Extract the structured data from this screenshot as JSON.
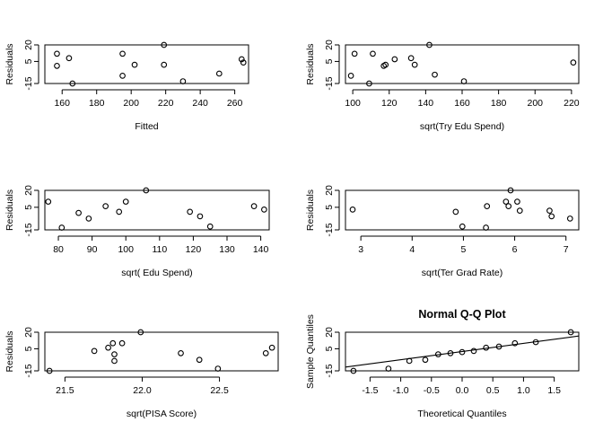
{
  "figure": {
    "background": "#ffffff",
    "point_color": "#000000"
  },
  "chart_data": [
    {
      "type": "scatter",
      "title": "",
      "xlabel": "Fitted",
      "ylabel": "Residuals",
      "xlim": [
        150,
        268
      ],
      "ylim": [
        -15,
        20
      ],
      "xticks": [
        160,
        180,
        200,
        220,
        240,
        260
      ],
      "yticks": [
        -15,
        5,
        20
      ],
      "grid": false,
      "points": [
        {
          "x": 157,
          "y": 12
        },
        {
          "x": 157,
          "y": 1
        },
        {
          "x": 164,
          "y": 8
        },
        {
          "x": 166,
          "y": -15
        },
        {
          "x": 195,
          "y": 12
        },
        {
          "x": 195,
          "y": -8
        },
        {
          "x": 202,
          "y": 2
        },
        {
          "x": 219,
          "y": 20
        },
        {
          "x": 219,
          "y": 2
        },
        {
          "x": 230,
          "y": -13
        },
        {
          "x": 251,
          "y": -6
        },
        {
          "x": 264,
          "y": 7
        },
        {
          "x": 265,
          "y": 4
        }
      ]
    },
    {
      "type": "scatter",
      "title": "",
      "xlabel": "sqrt(Try Edu Spend)",
      "ylabel": "Residuals",
      "xlim": [
        96,
        224
      ],
      "ylim": [
        -15,
        20
      ],
      "xticks": [
        100,
        120,
        140,
        160,
        180,
        200,
        220
      ],
      "yticks": [
        -15,
        5,
        20
      ],
      "grid": false,
      "points": [
        {
          "x": 99,
          "y": -8
        },
        {
          "x": 101,
          "y": 12
        },
        {
          "x": 109,
          "y": -15
        },
        {
          "x": 111,
          "y": 12
        },
        {
          "x": 117,
          "y": 1
        },
        {
          "x": 118,
          "y": 2
        },
        {
          "x": 123,
          "y": 7
        },
        {
          "x": 132,
          "y": 8
        },
        {
          "x": 134,
          "y": 2
        },
        {
          "x": 142,
          "y": 20
        },
        {
          "x": 145,
          "y": -7
        },
        {
          "x": 161,
          "y": -13
        },
        {
          "x": 221,
          "y": 4
        }
      ]
    },
    {
      "type": "scatter",
      "title": "",
      "xlabel": "sqrt( Edu Spend)",
      "ylabel": "Residuals",
      "xlim": [
        76,
        142.5
      ],
      "ylim": [
        -15,
        20
      ],
      "xticks": [
        80,
        90,
        100,
        110,
        120,
        130,
        140
      ],
      "yticks": [
        -15,
        5,
        20
      ],
      "grid": false,
      "points": [
        {
          "x": 77,
          "y": 10
        },
        {
          "x": 81,
          "y": -13
        },
        {
          "x": 86,
          "y": 0
        },
        {
          "x": 89,
          "y": -5
        },
        {
          "x": 94,
          "y": 6
        },
        {
          "x": 98,
          "y": 1
        },
        {
          "x": 100,
          "y": 10
        },
        {
          "x": 106,
          "y": 20
        },
        {
          "x": 119,
          "y": 1
        },
        {
          "x": 122,
          "y": -3
        },
        {
          "x": 125,
          "y": -12
        },
        {
          "x": 138,
          "y": 6
        },
        {
          "x": 141,
          "y": 3
        }
      ]
    },
    {
      "type": "scatter",
      "title": "",
      "xlabel": "sqrt(Ter Grad Rate)",
      "ylabel": "Residuals",
      "xlim": [
        2.7,
        7.25
      ],
      "ylim": [
        -15,
        20
      ],
      "xticks": [
        3,
        4,
        5,
        6,
        7
      ],
      "yticks": [
        -15,
        5,
        20
      ],
      "grid": false,
      "points": [
        {
          "x": 2.84,
          "y": 3
        },
        {
          "x": 4.85,
          "y": 1
        },
        {
          "x": 4.98,
          "y": -12
        },
        {
          "x": 5.44,
          "y": -13
        },
        {
          "x": 5.46,
          "y": 6
        },
        {
          "x": 5.83,
          "y": 10
        },
        {
          "x": 5.88,
          "y": 6
        },
        {
          "x": 5.92,
          "y": 20
        },
        {
          "x": 6.05,
          "y": 10
        },
        {
          "x": 6.1,
          "y": 2
        },
        {
          "x": 6.68,
          "y": 2
        },
        {
          "x": 6.72,
          "y": -3
        },
        {
          "x": 7.08,
          "y": -5
        }
      ]
    },
    {
      "type": "scatter",
      "title": "",
      "xlabel": "sqrt(PISA Score)",
      "ylabel": "Residuals",
      "xlim": [
        21.37,
        22.88
      ],
      "ylim": [
        -15,
        20
      ],
      "xticks": [
        21.5,
        22.0,
        22.5
      ],
      "xtick_labels": [
        "21.5",
        "22.0",
        "22.5"
      ],
      "yticks": [
        -15,
        5,
        20
      ],
      "grid": false,
      "points": [
        {
          "x": 21.4,
          "y": -15
        },
        {
          "x": 21.69,
          "y": 3
        },
        {
          "x": 21.78,
          "y": 6
        },
        {
          "x": 21.81,
          "y": 10
        },
        {
          "x": 21.82,
          "y": 0
        },
        {
          "x": 21.82,
          "y": -6
        },
        {
          "x": 21.87,
          "y": 10
        },
        {
          "x": 21.99,
          "y": 20
        },
        {
          "x": 22.25,
          "y": 1
        },
        {
          "x": 22.37,
          "y": -5
        },
        {
          "x": 22.49,
          "y": -13
        },
        {
          "x": 22.8,
          "y": 1
        },
        {
          "x": 22.84,
          "y": 6
        }
      ]
    },
    {
      "type": "scatter",
      "title": "Normal Q-Q Plot",
      "xlabel": "Theoretical Quantiles",
      "ylabel": "Sample Quantiles",
      "xlim": [
        -1.9,
        1.9
      ],
      "ylim": [
        -15,
        20
      ],
      "xticks": [
        -1.5,
        -1.0,
        -0.5,
        0.0,
        0.5,
        1.0,
        1.5
      ],
      "xtick_labels": [
        "-1.5",
        "-1.0",
        "-0.5",
        "0.0",
        "0.5",
        "1.0",
        "1.5"
      ],
      "yticks": [
        -15,
        5,
        20
      ],
      "grid": false,
      "points": [
        {
          "x": -1.77,
          "y": -15
        },
        {
          "x": -1.2,
          "y": -13
        },
        {
          "x": -0.86,
          "y": -6
        },
        {
          "x": -0.6,
          "y": -5
        },
        {
          "x": -0.39,
          "y": 0
        },
        {
          "x": -0.19,
          "y": 1
        },
        {
          "x": 0.0,
          "y": 2
        },
        {
          "x": 0.19,
          "y": 3
        },
        {
          "x": 0.39,
          "y": 6
        },
        {
          "x": 0.6,
          "y": 7
        },
        {
          "x": 0.86,
          "y": 10
        },
        {
          "x": 1.2,
          "y": 11
        },
        {
          "x": 1.77,
          "y": 20
        }
      ],
      "reference_line": {
        "intercept": 2.5,
        "slope": 7.4
      }
    }
  ]
}
